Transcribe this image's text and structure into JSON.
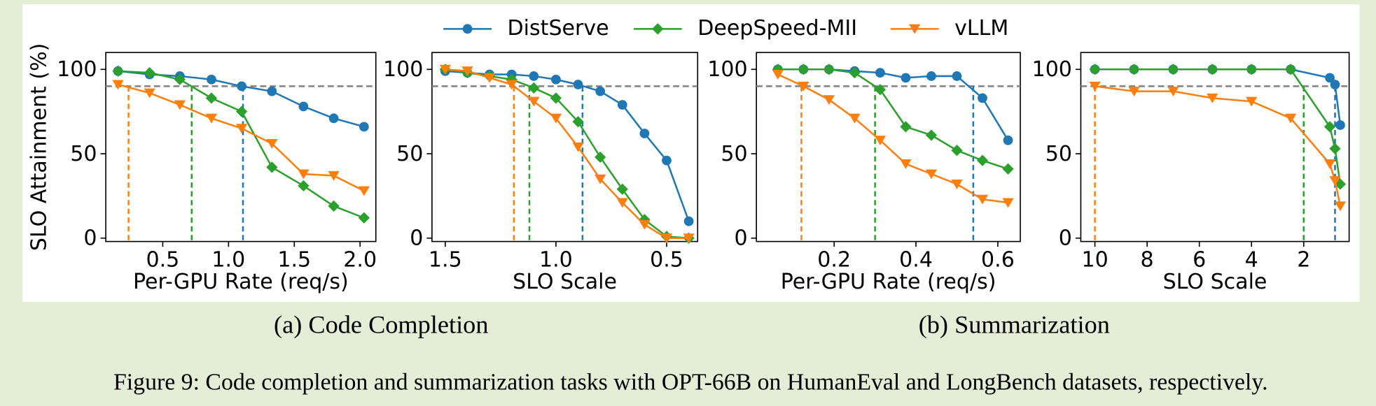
{
  "legend": [
    {
      "name": "DistServe",
      "color": "#1f77b4",
      "marker": "circle"
    },
    {
      "name": "DeepSpeed-MII",
      "color": "#2ca02c",
      "marker": "diamond"
    },
    {
      "name": "vLLM",
      "color": "#ff7f0e",
      "marker": "triangle-down"
    }
  ],
  "chart_data": [
    {
      "type": "line",
      "ylabel": "SLO Attainment (%)",
      "xlabel": "Per-GPU Rate (req/s)",
      "x": [
        0.16,
        0.4,
        0.63,
        0.87,
        1.1,
        1.33,
        1.57,
        1.8,
        2.03
      ],
      "xlim": [
        0.067,
        2.12
      ],
      "xticks": [
        0.5,
        {
          "value": 1,
          "label": "1.0"
        },
        1.5,
        {
          "value": 2,
          "label": "2.0"
        }
      ],
      "ylim": [
        -2,
        110
      ],
      "yticks": [
        0,
        50,
        100
      ],
      "target": 90,
      "series": [
        {
          "values": [
            99,
            97,
            96,
            94,
            90,
            87,
            78,
            71,
            66
          ],
          "threshold_x": 1.11
        },
        {
          "values": [
            99,
            98,
            94,
            83,
            75,
            42,
            31,
            19,
            12
          ],
          "threshold_x": 0.72
        },
        {
          "values": [
            91,
            86,
            79,
            71,
            65,
            56,
            38,
            37,
            28
          ],
          "threshold_x": 0.24
        }
      ]
    },
    {
      "type": "line",
      "xlabel": "SLO Scale",
      "x": [
        1.5,
        1.4,
        1.3,
        1.2,
        1.1,
        1.0,
        0.9,
        0.8,
        0.7,
        0.6,
        0.5,
        0.4
      ],
      "xlim": [
        1.56,
        0.36
      ],
      "xticks": [
        1.5,
        {
          "value": 1,
          "label": "1.0"
        },
        0.5
      ],
      "ylim": [
        -2,
        110
      ],
      "yticks": [
        0,
        50,
        100
      ],
      "target": 90,
      "series": [
        {
          "values": [
            99,
            98,
            97,
            97,
            96,
            94,
            91,
            87,
            79,
            62,
            46,
            10
          ],
          "threshold_x": 0.88
        },
        {
          "values": [
            100,
            98,
            96,
            94,
            89,
            83,
            69,
            48,
            29,
            11,
            1,
            0
          ],
          "threshold_x": 1.12
        },
        {
          "values": [
            100,
            99,
            95,
            91,
            81,
            71,
            54,
            35,
            21,
            8,
            0,
            0
          ],
          "threshold_x": 1.19
        }
      ]
    },
    {
      "type": "line",
      "xlabel": "Per-GPU Rate (req/s)",
      "x": [
        0.0625,
        0.125,
        0.1875,
        0.25,
        0.3125,
        0.375,
        0.4375,
        0.5,
        0.5625,
        0.625
      ],
      "xlim": [
        0.01,
        0.655
      ],
      "xticks": [
        0.2,
        0.4,
        0.6
      ],
      "ylim": [
        -2,
        110
      ],
      "yticks": [
        0,
        50,
        100
      ],
      "target": 90,
      "series": [
        {
          "values": [
            100,
            100,
            100,
            99,
            98,
            95,
            96,
            96,
            83,
            58
          ],
          "threshold_x": 0.54
        },
        {
          "values": [
            100,
            100,
            100,
            98,
            88,
            66,
            61,
            52,
            46,
            41
          ],
          "threshold_x": 0.3
        },
        {
          "values": [
            97,
            90,
            82,
            71,
            58,
            44,
            38,
            32,
            23,
            21
          ],
          "threshold_x": 0.12
        }
      ]
    },
    {
      "type": "line",
      "xlabel": "SLO Scale",
      "x": [
        10,
        8.5,
        7,
        5.5,
        4,
        2.5,
        1,
        0.8,
        0.6
      ],
      "xlim": [
        10.54,
        0.26
      ],
      "xticks": [
        10,
        8,
        6,
        4,
        2
      ],
      "ylim": [
        -2,
        110
      ],
      "yticks": [
        0,
        50,
        100
      ],
      "target": 90,
      "series": [
        {
          "values": [
            100,
            100,
            100,
            100,
            100,
            100,
            95,
            91,
            67
          ],
          "threshold_x": 0.8
        },
        {
          "values": [
            100,
            100,
            100,
            100,
            100,
            100,
            66,
            53,
            32
          ],
          "threshold_x": 2
        },
        {
          "values": [
            90,
            87,
            87,
            83,
            81,
            71,
            44,
            34,
            19
          ],
          "threshold_x": 10
        }
      ]
    }
  ],
  "subcaptions": [
    "(a) Code Completion",
    "(b) Summarization"
  ],
  "caption": "Figure 9: Code completion and summarization tasks with OPT-66B on HumanEval and LongBench datasets, respectively."
}
